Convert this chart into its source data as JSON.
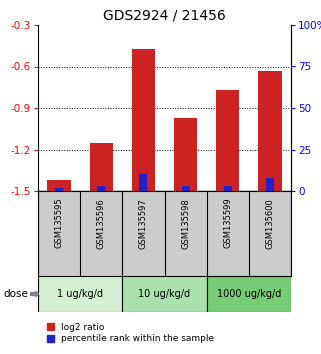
{
  "title": "GDS2924 / 21456",
  "samples": [
    "GSM135595",
    "GSM135596",
    "GSM135597",
    "GSM135598",
    "GSM135599",
    "GSM135600"
  ],
  "log2_values": [
    -1.42,
    -1.15,
    -0.47,
    -0.97,
    -0.77,
    -0.63
  ],
  "percentile_values": [
    2,
    3,
    10,
    3,
    3,
    8
  ],
  "ylim_left": [
    -1.5,
    -0.3
  ],
  "ylim_right": [
    0,
    100
  ],
  "yticks_left": [
    -1.5,
    -1.2,
    -0.9,
    -0.6,
    -0.3
  ],
  "yticks_right": [
    0,
    25,
    50,
    75,
    100
  ],
  "ytick_labels_left": [
    "-1.5",
    "-1.2",
    "-0.9",
    "-0.6",
    "-0.3"
  ],
  "ytick_labels_right": [
    "0",
    "25",
    "50",
    "75",
    "100%"
  ],
  "dose_groups": [
    {
      "label": "1 ug/kg/d",
      "indices": [
        0,
        1
      ],
      "color": "#d4f0d4"
    },
    {
      "label": "10 ug/kg/d",
      "indices": [
        2,
        3
      ],
      "color": "#aae0aa"
    },
    {
      "label": "1000 ug/kg/d",
      "indices": [
        4,
        5
      ],
      "color": "#77cc77"
    }
  ],
  "bar_color_red": "#cc2222",
  "bar_color_blue": "#2222cc",
  "bar_width": 0.55,
  "baseline": -1.5,
  "legend_red": "log2 ratio",
  "legend_blue": "percentile rank within the sample",
  "dose_label": "dose",
  "background_color": "#ffffff",
  "sample_box_color": "#cccccc",
  "title_fontsize": 10,
  "tick_fontsize": 7.5
}
